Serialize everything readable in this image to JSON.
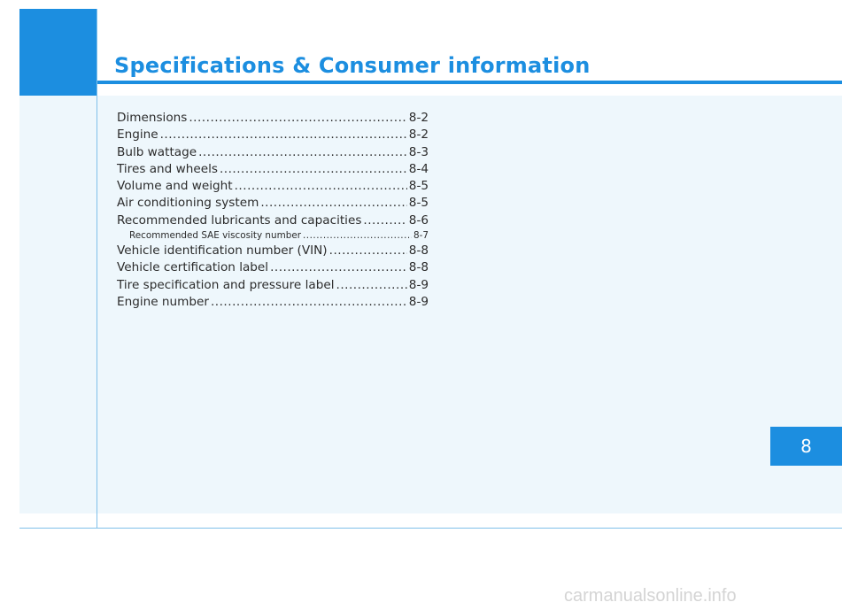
{
  "header": {
    "title": "Specifications & Consumer information"
  },
  "toc": {
    "items": [
      {
        "label": "Dimensions",
        "page": "8-2",
        "level": 1
      },
      {
        "label": "Engine",
        "page": "8-2",
        "level": 1
      },
      {
        "label": "Bulb wattage",
        "page": "8-3",
        "level": 1
      },
      {
        "label": "Tires and wheels",
        "page": "8-4",
        "level": 1
      },
      {
        "label": "Volume and weight",
        "page": "8-5",
        "level": 1
      },
      {
        "label": "Air conditioning system",
        "page": "8-5",
        "level": 1
      },
      {
        "label": "Recommended lubricants and capacities",
        "page": "8-6",
        "level": 1
      },
      {
        "label": "Recommended SAE viscosity number",
        "page": "8-7",
        "level": 2
      },
      {
        "label": "Vehicle identification number (VIN)",
        "page": "8-8",
        "level": 1
      },
      {
        "label": "Vehicle certification label",
        "page": "8-8",
        "level": 1
      },
      {
        "label": "Tire specification and pressure label",
        "page": "8-9",
        "level": 1
      },
      {
        "label": "Engine number",
        "page": "8-9",
        "level": 1
      }
    ]
  },
  "chapter_tab": {
    "number": "8"
  },
  "watermark": {
    "text": "carmanualsonline.info"
  },
  "colors": {
    "accent": "#1c8ee0",
    "panel": "#eef7fc",
    "text": "#2b2b2b"
  }
}
